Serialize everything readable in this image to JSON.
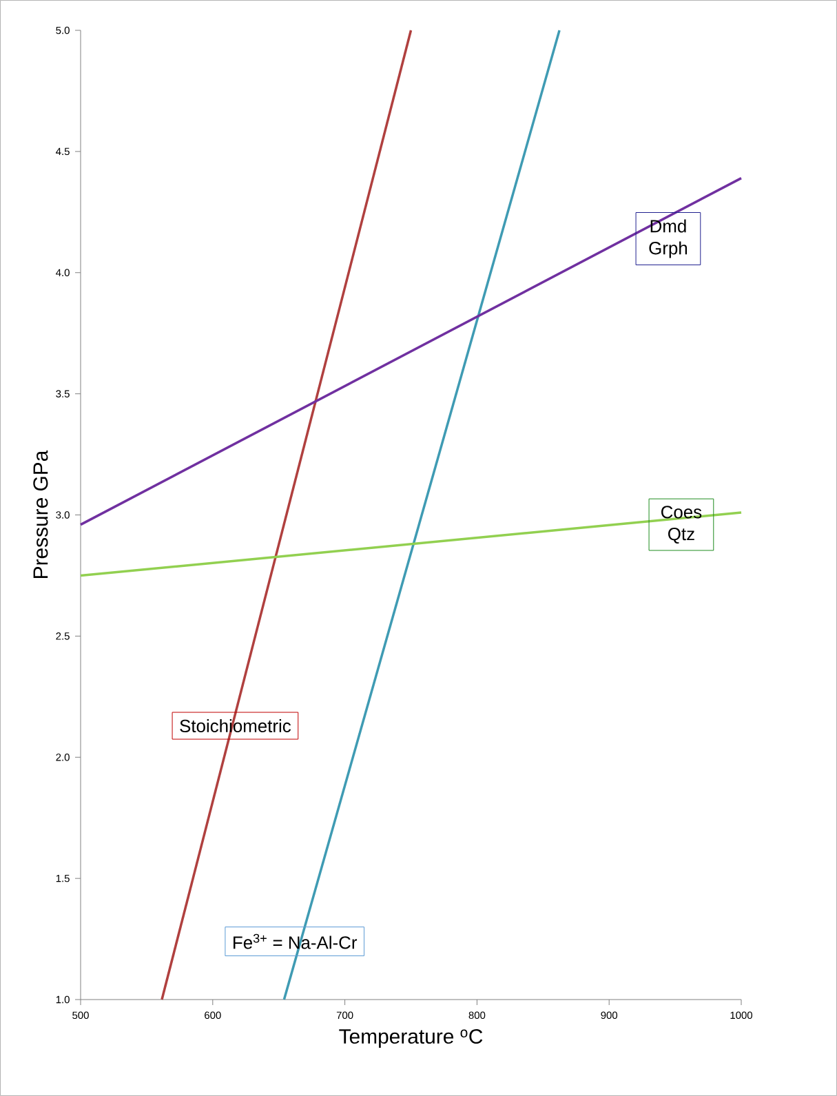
{
  "chart_data": {
    "type": "line",
    "xlabel": "Temperature $^{o}$C",
    "ylabel": "Pressure GPa",
    "xlim": [
      500,
      1000
    ],
    "xticks": [
      500,
      600,
      700,
      800,
      900,
      1000
    ],
    "ylim": [
      1.0,
      5.0
    ],
    "yticks": [
      {
        "value": 1.0,
        "label": "1.0"
      },
      {
        "value": 1.5,
        "label": "1.5"
      },
      {
        "value": 2.0,
        "label": "2.0"
      },
      {
        "value": 2.5,
        "label": "2.5"
      },
      {
        "value": 3.0,
        "label": "3.0"
      },
      {
        "value": 3.5,
        "label": "3.5"
      },
      {
        "value": 4.0,
        "label": "4.0"
      },
      {
        "value": 4.5,
        "label": "4.5"
      },
      {
        "value": 5.0,
        "label": "5.0"
      }
    ],
    "grid": false,
    "marker": "none",
    "line_style": "solid",
    "series": [
      {
        "color": "#b0403f",
        "x": [
          561.5,
          750
        ],
        "values": [
          1.0,
          5.0
        ]
      },
      {
        "color": "#3f9bb3",
        "x": [
          654,
          862.4
        ],
        "values": [
          1.0,
          5.0
        ]
      },
      {
        "color": "#7030a0",
        "x": [
          500,
          1000
        ],
        "values": [
          2.96,
          4.39
        ]
      },
      {
        "color": "#92d050",
        "x": [
          500,
          1000
        ],
        "values": [
          2.75,
          3.01
        ]
      }
    ],
    "annotations": [
      "Dmd Grph",
      "Coes Qtz",
      "Stoichiometric",
      "Fe$^{3+}$ = Na-Al-Cr"
    ]
  }
}
